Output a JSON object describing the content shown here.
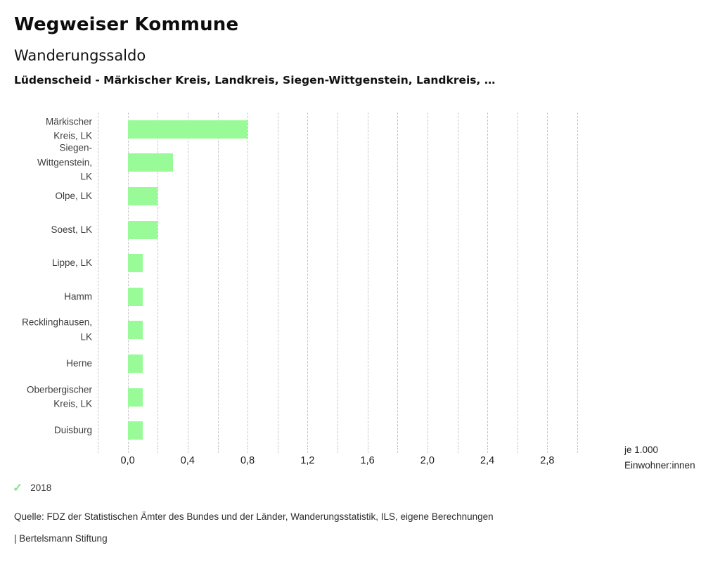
{
  "header": {
    "title": "Wegweiser Kommune",
    "subtitle": "Wanderungssaldo",
    "description": "Lüdenscheid - Märkischer Kreis, Landkreis, Siegen-Wittgenstein, Landkreis, …"
  },
  "chart_data": {
    "type": "bar",
    "orientation": "horizontal",
    "title": "Wanderungssaldo",
    "categories": [
      "Märkischer Kreis, LK",
      "Siegen-Wittgenstein, LK",
      "Olpe, LK",
      "Soest, LK",
      "Lippe, LK",
      "Hamm",
      "Recklinghausen, LK",
      "Herne",
      "Oberbergischer Kreis, LK",
      "Duisburg"
    ],
    "category_lines": [
      [
        "Märkischer",
        "Kreis, LK"
      ],
      [
        "Siegen-",
        "Wittgenstein,",
        "LK"
      ],
      [
        "Olpe, LK"
      ],
      [
        "Soest, LK"
      ],
      [
        "Lippe, LK"
      ],
      [
        "Hamm"
      ],
      [
        "Recklinghausen,",
        "LK"
      ],
      [
        "Herne"
      ],
      [
        "Oberbergischer",
        "Kreis, LK"
      ],
      [
        "Duisburg"
      ]
    ],
    "series": [
      {
        "name": "2018",
        "values": [
          0.8,
          0.3,
          0.2,
          0.2,
          0.1,
          0.1,
          0.1,
          0.1,
          0.1,
          0.1
        ]
      }
    ],
    "xlabel": "je 1.000 Einwohner:innen",
    "unit_label_lines": [
      "je 1.000",
      "Einwohner:innen"
    ],
    "xlim": [
      -0.2,
      3.0
    ],
    "grid_step": 0.2,
    "tick_values": [
      0.0,
      0.4,
      0.8,
      1.2,
      1.6,
      2.0,
      2.4,
      2.8
    ],
    "tick_labels": [
      "0,0",
      "0,4",
      "0,8",
      "1,2",
      "1,6",
      "2,0",
      "2,4",
      "2,8"
    ],
    "grid": true,
    "bar_color": "#98fb98",
    "legend_position": "bottom-left"
  },
  "legend": {
    "check_icon": "✓",
    "check_color": "#8fe08f",
    "year": "2018"
  },
  "footer": {
    "source": "Quelle: FDZ der Statistischen Ämter des Bundes und der Länder, Wanderungsstatistik, ILS, eigene Berechnungen",
    "branding": "| Bertelsmann Stiftung"
  }
}
